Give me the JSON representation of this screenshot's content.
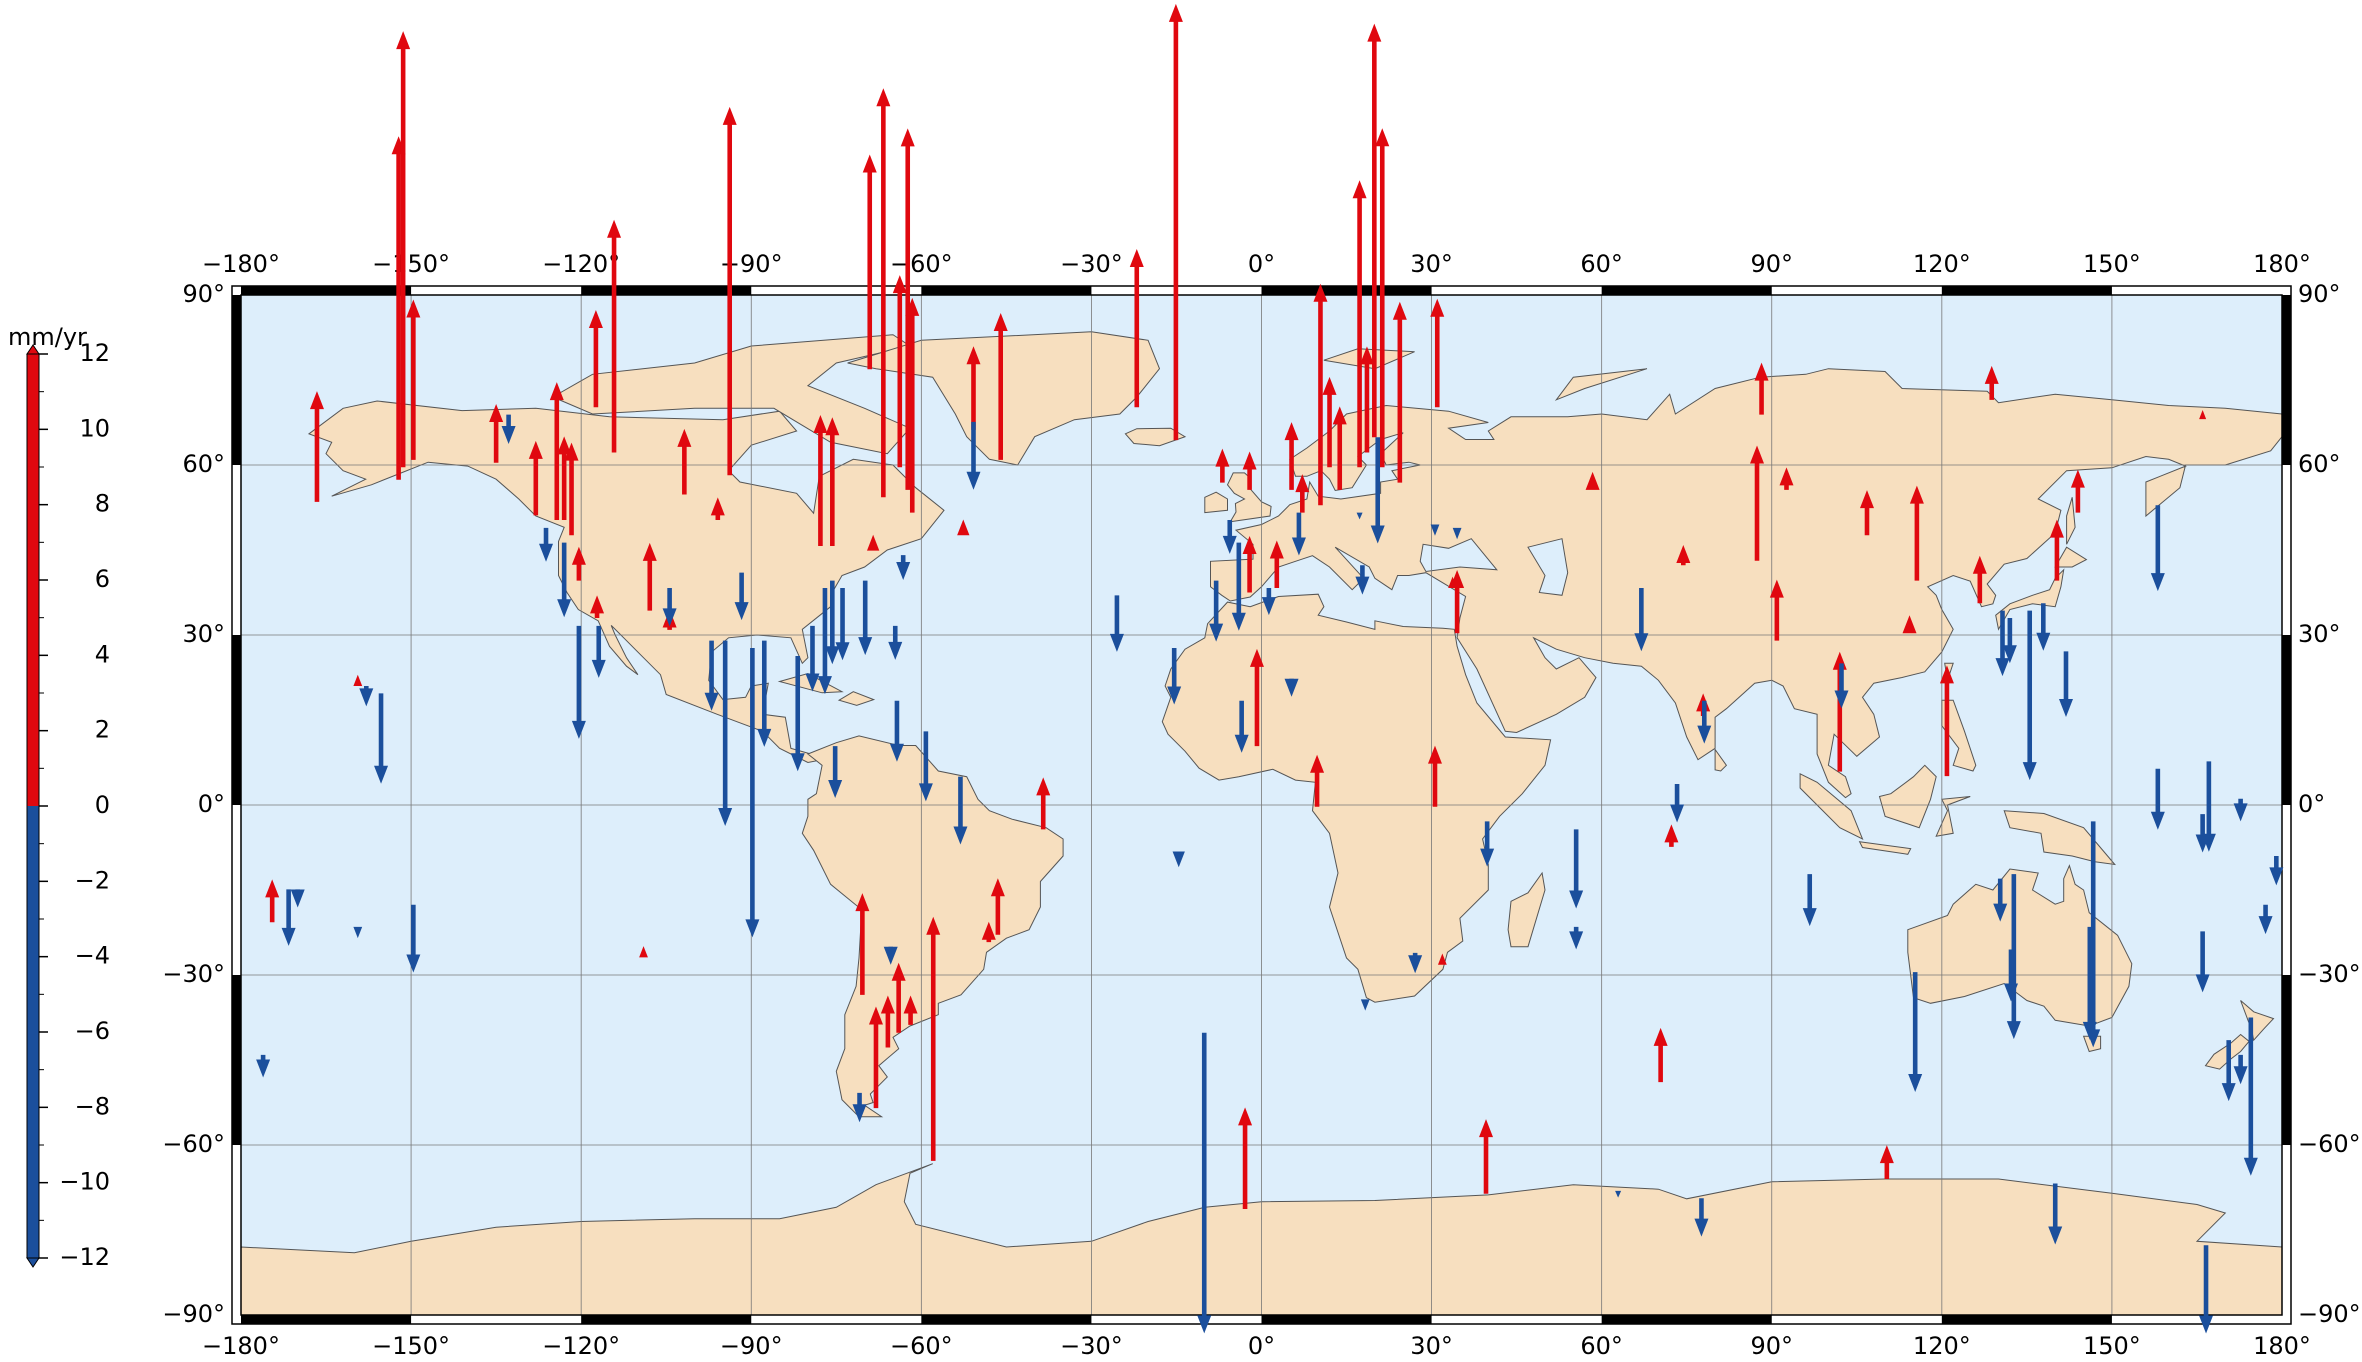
{
  "chart_data": {
    "type": "vector-map",
    "xlim": [
      -180,
      180
    ],
    "ylim": [
      -90,
      90
    ],
    "xticks": [
      {
        "value": -180,
        "label": "−180°"
      },
      {
        "value": -150,
        "label": "−150°"
      },
      {
        "value": -120,
        "label": "−120°"
      },
      {
        "value": -90,
        "label": "−90°"
      },
      {
        "value": -60,
        "label": "−60°"
      },
      {
        "value": -30,
        "label": "−30°"
      },
      {
        "value": 0,
        "label": "0°"
      },
      {
        "value": 30,
        "label": "30°"
      },
      {
        "value": 60,
        "label": "60°"
      },
      {
        "value": 90,
        "label": "90°"
      },
      {
        "value": 120,
        "label": "120°"
      },
      {
        "value": 150,
        "label": "150°"
      },
      {
        "value": 180,
        "label": "180°"
      }
    ],
    "yticks": [
      {
        "value": -90,
        "label": "−90°"
      },
      {
        "value": -60,
        "label": "−60°"
      },
      {
        "value": -30,
        "label": "−30°"
      },
      {
        "value": 0,
        "label": "0°"
      },
      {
        "value": 30,
        "label": "30°"
      },
      {
        "value": 60,
        "label": "60°"
      },
      {
        "value": 90,
        "label": "90°"
      }
    ],
    "grid": true,
    "positive_color": "#e0080f",
    "negative_color": "#1b4f9c",
    "colorbar": {
      "label": "mm/yr",
      "lim": [
        -12,
        12
      ],
      "ticks": [
        12,
        10,
        8,
        6,
        4,
        2,
        0,
        {
          "value": -2,
          "label": "−2"
        },
        {
          "value": -4,
          "label": "−4"
        },
        {
          "value": -6,
          "label": "−6"
        },
        {
          "value": -8,
          "label": "−8"
        },
        {
          "value": -10,
          "label": "−10"
        },
        {
          "value": -12,
          "label": "−12"
        }
      ]
    },
    "stations": {
      "lon": [
        -166.6,
        -152.2,
        -151.4,
        -149.6,
        -135,
        -128,
        -124.3,
        -123,
        -121.7,
        -120.4,
        -117.2,
        -117.4,
        -114.2,
        -107.9,
        -104.4,
        -101.8,
        -95.9,
        -93.8,
        -77.8,
        -75.7,
        -68.5,
        -69.1,
        -66.7,
        -63.8,
        -62.4,
        -61.6,
        -52.6,
        -50.8,
        -46,
        -22,
        -15.1,
        -38.5,
        -70.4,
        -68,
        -65.9,
        -64,
        -61.9,
        -57.9,
        -46.5,
        -48.1,
        -174.5,
        -109,
        -159.4,
        -6.9,
        -2.1,
        5.3,
        7.2,
        10.4,
        12,
        13.8,
        17.3,
        18.6,
        19.9,
        21.3,
        24.4,
        31,
        -2.1,
        2.7,
        -0.8,
        9.8,
        30.6,
        34.5,
        33.7,
        31.9,
        88.2,
        87.4,
        90.9,
        92.6,
        74.4,
        58.4,
        102,
        106.8,
        115.6,
        114.3,
        120.9,
        126.7,
        128.8,
        140.3,
        144,
        166,
        70.4,
        72.3,
        39.6,
        -2.9,
        110.3,
        77.9,
        -132.8,
        -126.2,
        -123,
        -120.4,
        -116.9,
        -155.3,
        -157.9,
        -171.6,
        -170,
        -159.4,
        -149.6,
        -176.1,
        -104.4,
        -97,
        -94.6,
        -91.7,
        -89.8,
        -87.7,
        -81.8,
        -77,
        -75.7,
        -73.9,
        -79.2,
        -69.9,
        -63.2,
        -64.6,
        -64.3,
        -59.2,
        -53.1,
        -75.2,
        -50.8,
        -25.5,
        -15.4,
        -14.6,
        -10.1,
        -5.6,
        -8,
        -4,
        1.3,
        -3.5,
        5.3,
        6.6,
        17.8,
        20.5,
        17.3,
        30.6,
        34.5,
        39.8,
        27.1,
        18.3,
        55.5,
        55.5,
        67,
        73.3,
        78.1,
        77.6,
        62.9,
        96.7,
        102.3,
        115.3,
        130.7,
        132,
        135.5,
        137.9,
        141.9,
        158.1,
        130.3,
        132.7,
        132.2,
        146.7,
        146.1,
        158.1,
        167.1,
        166,
        172.7,
        179,
        177.1,
        166,
        174.5,
        170.6,
        172.7,
        140,
        166.6,
        -70.9,
        -65.4
      ],
      "lat": [
        53.5,
        57.4,
        59.6,
        60.9,
        60.4,
        51.1,
        50.3,
        50.3,
        47.6,
        39.6,
        33,
        70.2,
        62.2,
        34.3,
        30.9,
        54.8,
        50.3,
        58.2,
        45.7,
        45.7,
        44.9,
        76.9,
        54.3,
        59.6,
        55.6,
        51.6,
        47.6,
        66.2,
        60.9,
        70.2,
        64.4,
        -4.3,
        -33.5,
        -53.5,
        -42.8,
        -40.2,
        -38.8,
        -62.8,
        -22.9,
        -24.2,
        -20.7,
        -26.9,
        21,
        56.9,
        55.6,
        55.6,
        51.6,
        52.9,
        59.6,
        55.6,
        59.6,
        62.2,
        64.9,
        59.6,
        56.9,
        70.2,
        37.5,
        38.3,
        10.4,
        -0.3,
        -0.3,
        30.3,
        38.3,
        -28.2,
        68.9,
        43.1,
        29,
        55.6,
        42.3,
        55.6,
        5.9,
        47.6,
        39.6,
        30.3,
        5.1,
        35.6,
        71.5,
        39.6,
        51.6,
        68.1,
        -48.9,
        -7.4,
        -68.6,
        -71.3,
        -66,
        15.7,
        68.9,
        48.9,
        46.3,
        31.6,
        31.6,
        19.7,
        21,
        -14.9,
        -14.9,
        -21.5,
        -17.6,
        -44.1,
        38.3,
        29,
        29,
        41,
        27.7,
        29,
        26.3,
        38.3,
        39.6,
        38.3,
        31.6,
        39.6,
        44.1,
        31.6,
        18.4,
        13,
        5,
        10.4,
        67.6,
        37,
        27.7,
        -8.2,
        -40.2,
        50.3,
        39.6,
        46.3,
        38.3,
        18.4,
        22.3,
        51.6,
        42.3,
        64.9,
        51.6,
        49.5,
        48.9,
        -2.9,
        -26.1,
        -34.3,
        -4.3,
        -21.5,
        38.3,
        3.7,
        18.4,
        -69.4,
        -68.1,
        -12.2,
        25,
        -29.5,
        34.3,
        33,
        34.3,
        35.6,
        27.1,
        52.9,
        -13,
        -12.2,
        -25.5,
        -2.9,
        -21.5,
        6.4,
        7.7,
        -1.6,
        1.1,
        -9,
        -17.6,
        -22.3,
        -37.5,
        -41.5,
        -44.1,
        -66.8,
        -77.7,
        -50.8,
        -25
      ],
      "values": [
        4.9,
        15.2,
        19.3,
        7.1,
        2.6,
        3.3,
        6.1,
        3.7,
        4.1,
        1.5,
        1,
        4.3,
        10.3,
        3,
        0.9,
        2.9,
        1,
        16.3,
        5.8,
        5.7,
        0.7,
        9.5,
        18.1,
        8.5,
        16,
        9.5,
        0.7,
        3.7,
        6.5,
        7,
        19.3,
        2.3,
        4.5,
        4.5,
        2.3,
        3.1,
        1.3,
        10.8,
        2.5,
        0.9,
        1.9,
        0.5,
        0.5,
        1.5,
        1.7,
        3,
        1.7,
        9.8,
        4,
        3.7,
        12.7,
        4.7,
        18.3,
        15,
        8,
        4.8,
        2.5,
        2.1,
        4.3,
        2.3,
        2.7,
        2.8,
        0.5,
        0.5,
        2.3,
        5.1,
        2.7,
        1,
        0.9,
        0.8,
        5.3,
        2,
        4.2,
        0.8,
        4.9,
        2.1,
        1.5,
        2.7,
        1.9,
        0.4,
        2.4,
        1,
        3.3,
        4.5,
        1.5,
        1,
        -1.3,
        -1.5,
        -3.3,
        -5,
        -2.3,
        -4,
        -0.9,
        -2.5,
        -0.8,
        -0.5,
        -3,
        -1,
        -1.7,
        -3.1,
        -8.2,
        -2.1,
        -12.8,
        -4.7,
        -5.1,
        -4.7,
        -3.7,
        -3.2,
        -2.9,
        -3.3,
        -1.1,
        -1.5,
        -2.7,
        -3.1,
        -3,
        -2.3,
        -3,
        -2.5,
        -2.5,
        -0.7,
        -13.3,
        -1.5,
        -2.7,
        -3.9,
        -1.2,
        -2.3,
        -0.8,
        -1.9,
        -1.3,
        -4.7,
        -0.3,
        -0.5,
        -0.5,
        -2,
        -0.9,
        -0.5,
        -3.5,
        -1,
        -2.8,
        -1.7,
        -1.9,
        -1.7,
        -0.3,
        -2.3,
        -2,
        -5.3,
        -2.9,
        -2,
        -7.5,
        -2.1,
        -2.9,
        -3.8,
        -1.9,
        -7.3,
        -2.3,
        -10,
        -5,
        -2.7,
        -4,
        -1.7,
        -1,
        -1.3,
        -1.3,
        -2.7,
        -7,
        -2.7,
        -1.3,
        -2.7,
        -3.9,
        -1.3,
        -0.8
      ]
    }
  }
}
